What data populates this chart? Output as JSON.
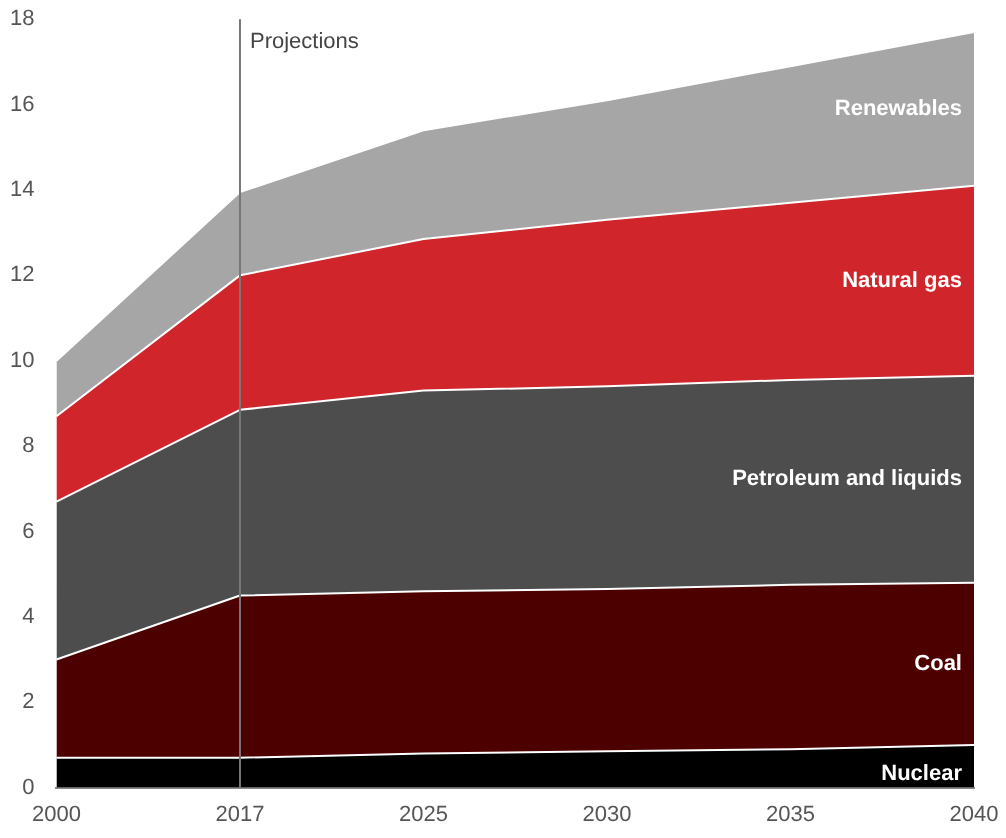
{
  "chart_data": {
    "type": "area",
    "stacked": true,
    "categories": [
      "2000",
      "2017",
      "2025",
      "2030",
      "2035",
      "2040"
    ],
    "series": [
      {
        "name": "Nuclear",
        "color": "#000000",
        "values": [
          0.7,
          0.7,
          0.8,
          0.85,
          0.9,
          1.0
        ]
      },
      {
        "name": "Coal",
        "color": "#4d0000",
        "values": [
          2.3,
          3.8,
          3.8,
          3.8,
          3.85,
          3.8
        ]
      },
      {
        "name": "Petroleum and liquids",
        "color": "#4d4d4d",
        "values": [
          3.7,
          4.35,
          4.7,
          4.75,
          4.8,
          4.85
        ]
      },
      {
        "name": "Natural gas",
        "color": "#d0262b",
        "values": [
          2.0,
          3.15,
          3.55,
          3.9,
          4.15,
          4.45
        ]
      },
      {
        "name": "Renewables",
        "color": "#a6a6a6",
        "values": [
          1.3,
          1.95,
          2.55,
          2.8,
          3.2,
          3.6
        ]
      }
    ],
    "ylim": [
      0,
      18
    ],
    "yticks": [
      0,
      2,
      4,
      6,
      8,
      10,
      12,
      14,
      16,
      18
    ],
    "grid": false,
    "legend": false,
    "ref_lines": [
      {
        "axis": "x",
        "value": "2017",
        "label": "Projections",
        "color": "#777777"
      }
    ]
  }
}
